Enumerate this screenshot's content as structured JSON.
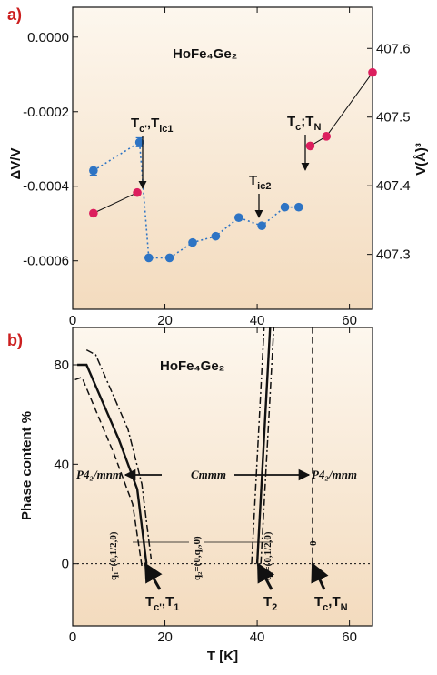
{
  "colors": {
    "plot_bg_top": "#fdf7ee",
    "plot_bg_bottom": "#f3dbbe",
    "blue_marker": "#2e74c4",
    "red_marker": "#dc1f5e",
    "panel_label": "#cc1f1f"
  },
  "chart_data": [
    {
      "type": "scatter",
      "panel_label": "a)",
      "title": "HoFe₄Ge₂",
      "ylabel": "ΔV/V",
      "y2label": "V(Å)³",
      "xlim": [
        0,
        65
      ],
      "ylim": [
        -0.00073,
        8e-05
      ],
      "y2lim": [
        407.22,
        407.66
      ],
      "xticks": [
        "0",
        "20",
        "40",
        "60"
      ],
      "yticks": [
        "0.0000",
        "-0.0002",
        "-0.0004",
        "-0.0006"
      ],
      "y2ticks": [
        "407.3",
        "407.4",
        "407.5",
        "407.6"
      ],
      "series": [
        {
          "style": "blue dotted line with circles",
          "x": [
            4.5,
            14.5,
            16.5,
            21,
            26,
            31,
            36,
            41,
            46,
            49
          ],
          "y": [
            -0.000358,
            -0.000282,
            -0.000592,
            -0.000592,
            -0.000551,
            -0.000534,
            -0.000484,
            -0.000506,
            -0.000456,
            -0.000456
          ],
          "error": [
            1.2e-05,
            1.2e-05,
            0,
            0,
            0,
            0,
            0,
            0,
            0,
            0
          ]
        },
        {
          "style": "red solid segments with circles",
          "x": [
            4.5,
            14,
            51.5,
            55,
            65
          ],
          "y": [
            407.36,
            407.39,
            407.458,
            407.472,
            407.565
          ],
          "segments": [
            [
              0,
              1
            ],
            [
              2,
              4
            ]
          ]
        }
      ],
      "annotations": [
        {
          "base": "T",
          "sub1": "c'",
          "mid": ",T",
          "sub2": "ic1"
        },
        {
          "base": "T",
          "sub1": "ic2",
          "mid": "",
          "sub2": ""
        },
        {
          "base": "T",
          "sub1": "c",
          "mid": ";T",
          "sub2": "N"
        }
      ]
    },
    {
      "type": "line",
      "panel_label": "b)",
      "title": "HoFe₄Ge₂",
      "ylabel": "Phase content %",
      "xlabel": "T [K]",
      "xlim": [
        0,
        65
      ],
      "ylim": [
        -25,
        95
      ],
      "xticks": [
        "0",
        "20",
        "40",
        "60"
      ],
      "yticks": [
        "80",
        "40",
        "0"
      ],
      "series": [
        {
          "style": "solid",
          "x": [
            1,
            3,
            10,
            14,
            16
          ],
          "y": [
            80,
            80,
            50,
            30,
            0
          ]
        },
        {
          "style": "dash-dot",
          "x": [
            3,
            5,
            12,
            15,
            17
          ],
          "y": [
            86,
            84,
            54,
            32,
            2
          ]
        },
        {
          "style": "dashed",
          "x": [
            0.5,
            2,
            9,
            13,
            15
          ],
          "y": [
            74,
            75,
            44,
            24,
            -1
          ]
        },
        {
          "style": "solid",
          "x": [
            40,
            42.8
          ],
          "y": [
            0,
            95
          ]
        },
        {
          "style": "dash-dot",
          "x": [
            38.8,
            41.5
          ],
          "y": [
            0,
            95
          ]
        },
        {
          "style": "dash-dot",
          "x": [
            40.8,
            43.6
          ],
          "y": [
            0,
            95
          ]
        },
        {
          "style": "dashed",
          "x": [
            52,
            52
          ],
          "y": [
            -4,
            95
          ]
        }
      ],
      "phases": [
        "P4₂/mnm",
        "Cmmm",
        "P4₂/mnm"
      ],
      "q_labels": [
        "q₁=(0,1/2,0)",
        "q₂=(0,qᵧ,0)",
        "q₁=(0,1/2,0)",
        "0"
      ],
      "annotations": [
        {
          "base": "T",
          "sub1": "c'",
          "mid": ",T",
          "sub2": "1"
        },
        {
          "base": "T",
          "sub1": "2",
          "mid": "",
          "sub2": ""
        },
        {
          "base": "T",
          "sub1": "c",
          "mid": ",T",
          "sub2": "N"
        }
      ]
    }
  ]
}
